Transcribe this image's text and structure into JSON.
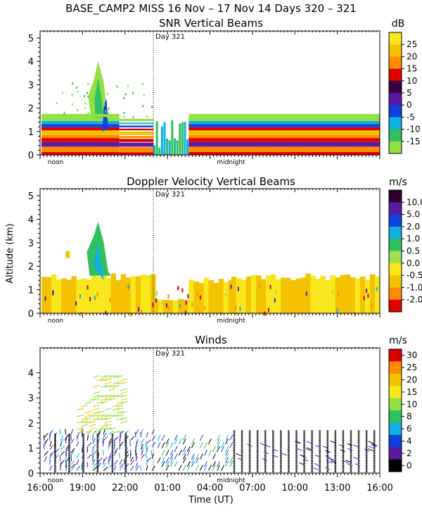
{
  "header": {
    "title": "BASE_CAMP2 MISS  16 Nov – 17 Nov 14 Days 320 – 321"
  },
  "x_axis": {
    "label": "Time (UT)",
    "ticks": [
      "16:00",
      "19:00",
      "22:00",
      "01:00",
      "04:00",
      "07:00",
      "10:00",
      "13:00",
      "16:00"
    ],
    "noon_label": "noon",
    "midnight_label": "midnight",
    "day_marker": "Day 321"
  },
  "y_axis": {
    "label": "Altitude (km)"
  },
  "chart_data": [
    {
      "type": "heatmap",
      "title": "SNR Vertical Beams",
      "units": "dB",
      "x_range_hours": [
        0,
        24
      ],
      "ylim": [
        0,
        5.3
      ],
      "y_ticks": [
        "0",
        "1",
        "2",
        "3",
        "4",
        "5"
      ],
      "colorbar_ticks": [
        "25",
        "20",
        "15",
        "10",
        "5",
        "0",
        "-5",
        "-10",
        "-15"
      ],
      "colorbar_colors": [
        "#f8e71c",
        "#f5c200",
        "#ff8c00",
        "#e00000",
        "#3a0040",
        "#5a1aa0",
        "#1040e0",
        "#10b0e0",
        "#30c060",
        "#90e040"
      ]
    },
    {
      "type": "heatmap",
      "title": "Doppler Velocity Vertical Beams",
      "units": "m/s",
      "x_range_hours": [
        0,
        24
      ],
      "ylim": [
        0,
        5.3
      ],
      "y_ticks": [
        "0",
        "1",
        "2",
        "3",
        "4",
        "5"
      ],
      "colorbar_ticks": [
        "10.0",
        "5.0",
        "2.0",
        "1.0",
        "0.5",
        "0.0",
        "-0.5",
        "-1.0",
        "-2.0"
      ],
      "colorbar_colors": [
        "#2a0030",
        "#5a1aa0",
        "#1040e0",
        "#10b0e0",
        "#30c060",
        "#a0e050",
        "#f8e71c",
        "#f5c200",
        "#ff8c00",
        "#e00000"
      ]
    },
    {
      "type": "scatter",
      "title": "Winds",
      "units": "m/s",
      "x_range_hours": [
        0,
        24
      ],
      "ylim": [
        0,
        5
      ],
      "y_ticks": [
        "0",
        "1",
        "2",
        "3",
        "4"
      ],
      "colorbar_ticks": [
        "30",
        "25",
        "20",
        "15",
        "10",
        "8",
        "6",
        "4",
        "2",
        "0"
      ],
      "colorbar_colors": [
        "#e00000",
        "#ff8c00",
        "#f5c200",
        "#f8e71c",
        "#90e040",
        "#30c060",
        "#10b0e0",
        "#1040e0",
        "#5a1aa0",
        "#000000"
      ]
    }
  ]
}
